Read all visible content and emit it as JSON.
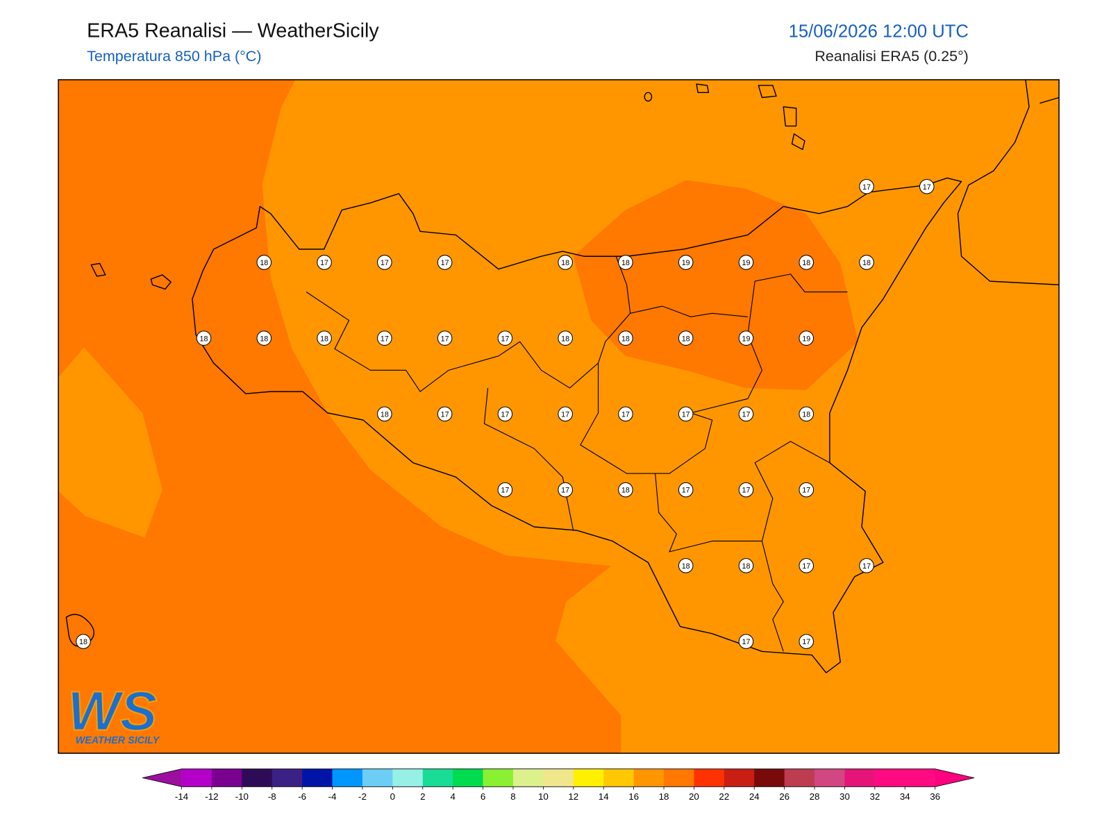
{
  "header": {
    "title": "ERA5 Reanalisi — WeatherSicily",
    "subtitle": "Temperatura 850 hPa (°C)",
    "datetime": "15/06/2026 12:00 UTC",
    "source": "Reanalisi ERA5 (0.25°)"
  },
  "logo": {
    "mark": "WS",
    "name": "WEATHER SICILY"
  },
  "stations": {
    "rows": [
      [
        null,
        null,
        null,
        null,
        null,
        null,
        null,
        null,
        null,
        null,
        null,
        null,
        null,
        17,
        17
      ],
      [
        null,
        null,
        null,
        18,
        17,
        17,
        17,
        null,
        18,
        18,
        19,
        19,
        18,
        18,
        null
      ],
      [
        null,
        null,
        18,
        18,
        18,
        17,
        17,
        17,
        18,
        18,
        18,
        19,
        19,
        null,
        null
      ],
      [
        null,
        null,
        null,
        null,
        null,
        18,
        17,
        17,
        17,
        17,
        17,
        17,
        18,
        null,
        null
      ],
      [
        null,
        null,
        null,
        null,
        null,
        null,
        null,
        17,
        17,
        18,
        17,
        17,
        17,
        null,
        null
      ],
      [
        null,
        null,
        null,
        null,
        null,
        null,
        null,
        null,
        null,
        null,
        18,
        18,
        17,
        17,
        null
      ],
      [
        18,
        null,
        null,
        null,
        null,
        null,
        null,
        null,
        null,
        null,
        null,
        17,
        17,
        null,
        null
      ]
    ]
  },
  "colorbar": {
    "ticks": [
      -14,
      -12,
      -10,
      -8,
      -6,
      -4,
      -2,
      0,
      2,
      4,
      6,
      8,
      10,
      12,
      14,
      16,
      18,
      20,
      22,
      24,
      26,
      28,
      30,
      32,
      34,
      36
    ],
    "under": "#9b0fa0",
    "over": "#ff0080",
    "colors": [
      "#b400c8",
      "#7a0090",
      "#2e0b57",
      "#3c2185",
      "#0014a8",
      "#0096ff",
      "#6ccdf5",
      "#96f0e6",
      "#19dc96",
      "#00dc50",
      "#8cf032",
      "#dcf08c",
      "#f0e68c",
      "#fff000",
      "#ffc800",
      "#ff9600",
      "#ff7800",
      "#ff3200",
      "#c81e14",
      "#780a0a",
      "#be3c50",
      "#d24682",
      "#e61478",
      "#ff0a82",
      "#ff0a82"
    ]
  }
}
